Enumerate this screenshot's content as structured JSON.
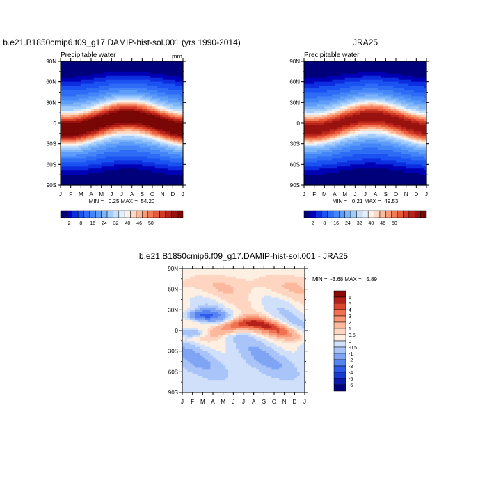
{
  "chart_data": [
    {
      "type": "heatmap",
      "title": "b.e21.B1850cmip6.f09_g17.DAMIP-hist-sol.001 (yrs 1990-2014)",
      "subtitle_left": "Precipitable water",
      "units": "mm",
      "x_ticks": [
        "J",
        "F",
        "M",
        "A",
        "M",
        "J",
        "J",
        "A",
        "S",
        "O",
        "N",
        "D",
        "J"
      ],
      "y_ticks": [
        "90N",
        "60N",
        "30N",
        "0",
        "30S",
        "60S",
        "90S"
      ],
      "ylim": [
        -90,
        90
      ],
      "min_max_text": "MIN =   0.25 MAX =  54.20",
      "min": 0.25,
      "max": 54.2,
      "colorbar_labels": [
        "2",
        "8",
        "16",
        "24",
        "32",
        "40",
        "46",
        "50"
      ],
      "shift": 10
    },
    {
      "type": "heatmap",
      "title": "JRA25",
      "subtitle_left": "Precipitable water",
      "units": "",
      "x_ticks": [
        "J",
        "F",
        "M",
        "A",
        "M",
        "J",
        "J",
        "A",
        "S",
        "O",
        "N",
        "D",
        "J"
      ],
      "y_ticks": [
        "90N",
        "60N",
        "30N",
        "0",
        "30S",
        "60S",
        "90S"
      ],
      "ylim": [
        -90,
        90
      ],
      "min_max_text": "MIN =   0.21 MAX =  49.53",
      "min": 0.21,
      "max": 49.53,
      "colorbar_labels": [
        "2",
        "8",
        "16",
        "24",
        "32",
        "40",
        "46",
        "50"
      ],
      "shift": 10
    },
    {
      "type": "heatmap",
      "title": "b.e21.B1850cmip6.f09_g17.DAMIP-hist-sol.001 - JRA25",
      "x_ticks": [
        "J",
        "F",
        "M",
        "A",
        "M",
        "J",
        "J",
        "A",
        "S",
        "O",
        "N",
        "D",
        "J"
      ],
      "y_ticks": [
        "90N",
        "60N",
        "30N",
        "0",
        "30S",
        "60S",
        "90S"
      ],
      "ylim": [
        -90,
        90
      ],
      "min_max_text": "MIN =  -3.68 MAX =   5.89",
      "min": -3.68,
      "max": 5.89,
      "colorbar_labels": [
        "6",
        "5",
        "4",
        "3",
        "2",
        "1",
        "0.5",
        "0",
        "-0.5",
        "-1",
        "-2",
        "-3",
        "-4",
        "-5",
        "-6"
      ]
    }
  ],
  "colors": {
    "abs_scale": [
      "#00007a",
      "#0000b4",
      "#0d2ee0",
      "#1b52f2",
      "#2e6cf6",
      "#4485f7",
      "#5d9cf8",
      "#7db4fa",
      "#a3ccfb",
      "#c6e0fc",
      "#e5f0fd",
      "#fdf2e8",
      "#fdd8c2",
      "#fbbb9b",
      "#f89b76",
      "#f27a55",
      "#e85a3c",
      "#d33b27",
      "#b82418",
      "#981210",
      "#780705"
    ],
    "diff_scale": [
      "#00007a",
      "#0a1aa8",
      "#1a3ad0",
      "#2e5aea",
      "#5584f2",
      "#7fa4f4",
      "#a8c4f8",
      "#d0e0fb",
      "#fdf0e3",
      "#fdd5c0",
      "#fbb89d",
      "#f89775",
      "#ef7252",
      "#d9452f",
      "#b4201a",
      "#8a0a0a"
    ]
  }
}
